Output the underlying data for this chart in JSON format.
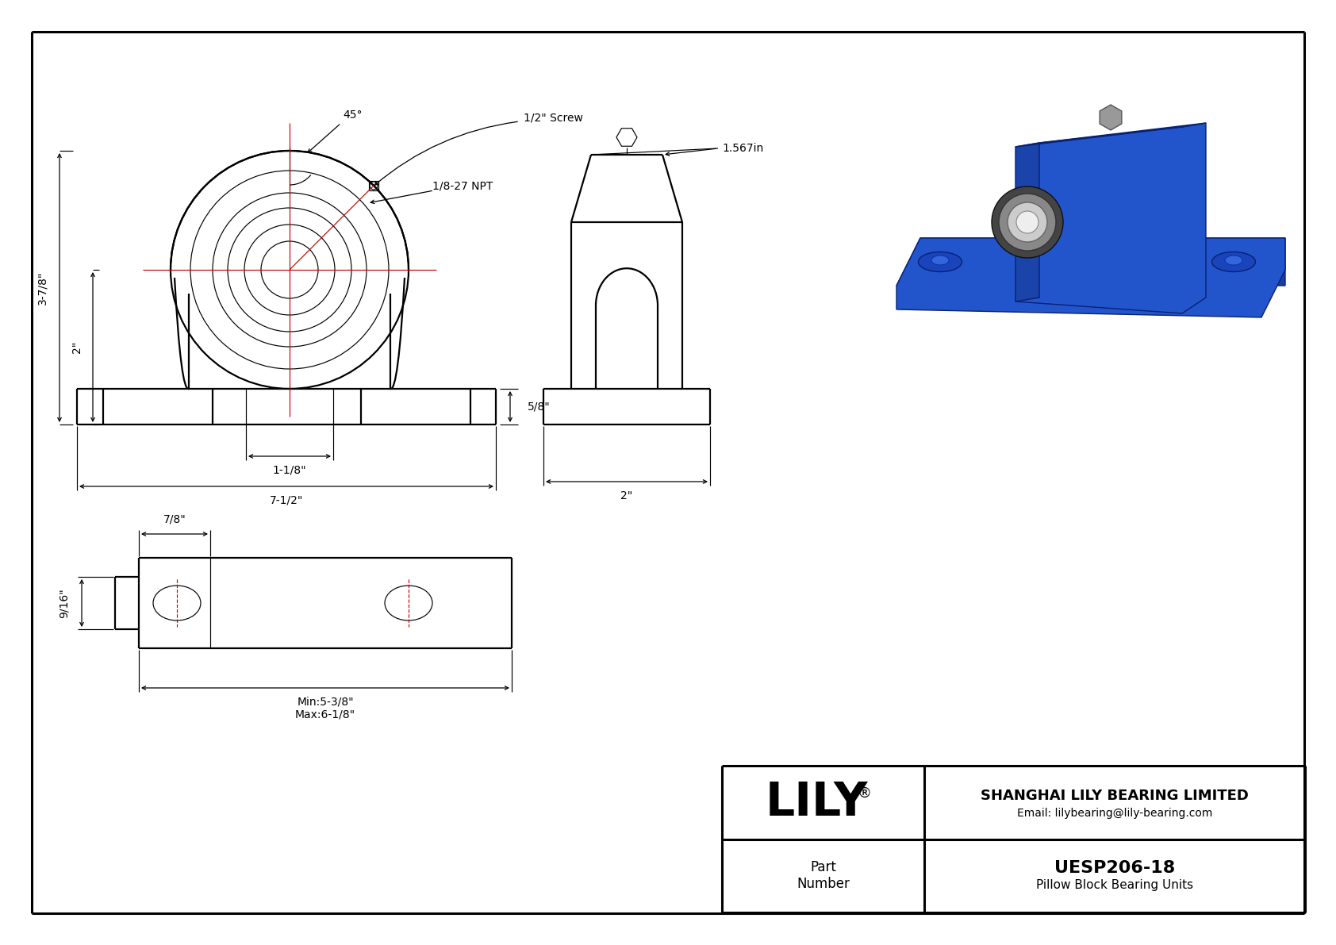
{
  "bg_color": "#ffffff",
  "lc": "#000000",
  "rc": "#cc0000",
  "title_block": {
    "company": "SHANGHAI LILY BEARING LIMITED",
    "email": "Email: lilybearing@lily-bearing.com",
    "part_label": "Part\nNumber",
    "part_number": "UESP206-18",
    "part_desc": "Pillow Block Bearing Units",
    "lily_text": "LILY",
    "lily_reg": "®"
  },
  "dims": {
    "d_38": "3-7/8\"",
    "d_2": "2\"",
    "d_118": "1-1/8\"",
    "d_712": "7-1/2\"",
    "d_58": "5/8\"",
    "d_45": "45°",
    "d_screw": "1/2\" Screw",
    "d_npt": "1/8-27 NPT",
    "d_1567": "1.567in",
    "d_2sv": "2\"",
    "d_78": "7/8\"",
    "d_916": "9/16\"",
    "d_min": "Min:5-3/8\"",
    "d_max": "Max:6-1/8\""
  }
}
